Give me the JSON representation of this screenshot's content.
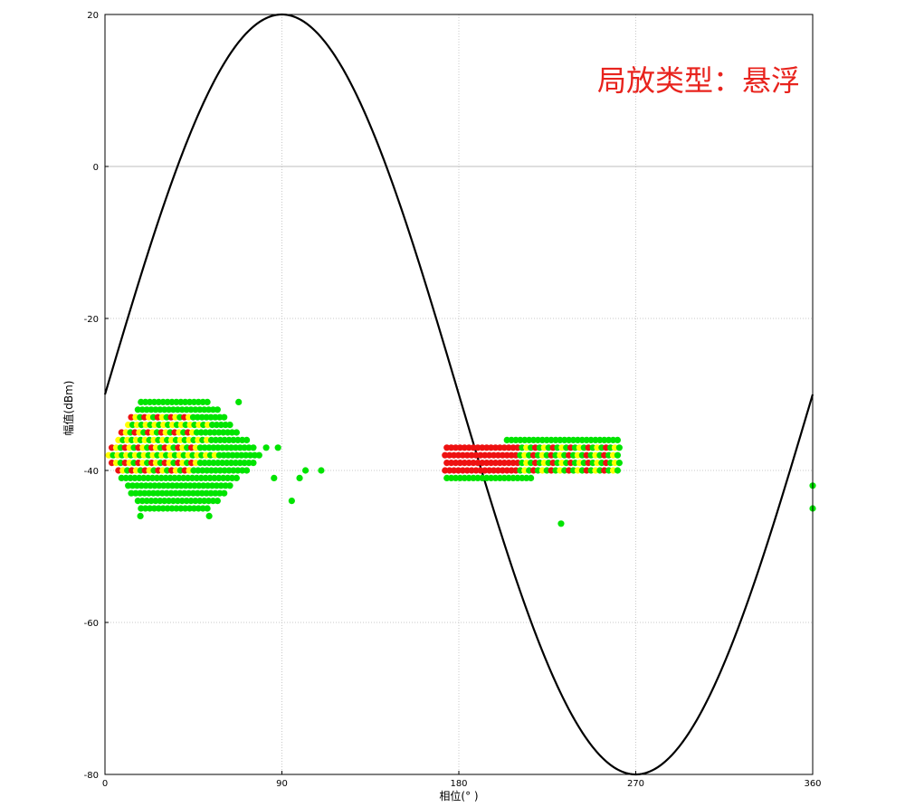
{
  "chart_data": {
    "type": "scatter",
    "title": "",
    "xlabel": "相位(° )",
    "ylabel": "幅值(dBm)",
    "xlim": [
      0,
      360
    ],
    "ylim": [
      -80,
      20
    ],
    "x_ticks": [
      "0",
      "90",
      "180",
      "270",
      "360"
    ],
    "y_ticks": [
      "20",
      "0",
      "-20",
      "-40",
      "-60",
      "-80"
    ],
    "grid": true,
    "annotation": {
      "text": "局放类型：悬浮",
      "color": "#e8231d"
    },
    "reference_curve": {
      "type": "sine",
      "amplitude": 50,
      "offset": -30,
      "color": "#000000"
    },
    "colors": {
      "low": "#00e400",
      "mid": "#ffff00",
      "high": "#ee1111"
    },
    "clusters": [
      {
        "name": "cluster-1",
        "x_range": [
          1,
          80
        ],
        "y_values": [
          -31,
          -32,
          -33,
          -34,
          -35,
          -36,
          -37,
          -38,
          -39,
          -40,
          -41,
          -42,
          -43,
          -44,
          -45
        ],
        "red_rows": [
          -33,
          -35,
          -37,
          -39,
          -40
        ],
        "yellow_rows": [
          -34,
          -36,
          -38
        ]
      },
      {
        "name": "cluster-2",
        "x_range": [
          173,
          262
        ],
        "y_values": [
          -36,
          -37,
          -38,
          -39,
          -40,
          -41
        ],
        "red_rows": [
          -37,
          -38,
          -39,
          -40
        ],
        "yellow_rows": [
          -37,
          -38,
          -39
        ]
      }
    ],
    "outliers": [
      {
        "x": 18,
        "y": -46,
        "c": "low"
      },
      {
        "x": 53,
        "y": -46,
        "c": "low"
      },
      {
        "x": 68,
        "y": -31,
        "c": "low"
      },
      {
        "x": 82,
        "y": -37,
        "c": "low"
      },
      {
        "x": 88,
        "y": -37,
        "c": "low"
      },
      {
        "x": 86,
        "y": -41,
        "c": "low"
      },
      {
        "x": 95,
        "y": -44,
        "c": "low"
      },
      {
        "x": 99,
        "y": -41,
        "c": "low"
      },
      {
        "x": 102,
        "y": -40,
        "c": "low"
      },
      {
        "x": 110,
        "y": -40,
        "c": "low"
      },
      {
        "x": 232,
        "y": -47,
        "c": "low"
      },
      {
        "x": 360,
        "y": -42,
        "c": "low"
      },
      {
        "x": 360,
        "y": -45,
        "c": "low"
      }
    ]
  }
}
